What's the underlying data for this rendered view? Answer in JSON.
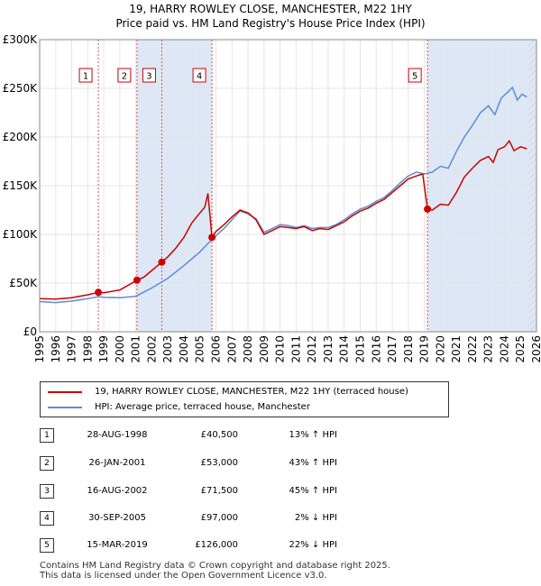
{
  "chart_data": {
    "type": "line",
    "title": "19, HARRY ROWLEY CLOSE, MANCHESTER, M22 1HY",
    "subtitle": "Price paid vs. HM Land Registry's House Price Index (HPI)",
    "ylim": [
      0,
      300000
    ],
    "y_ticks": [
      0,
      50000,
      100000,
      150000,
      200000,
      250000,
      300000
    ],
    "y_tick_labels": [
      "£0",
      "£50K",
      "£100K",
      "£150K",
      "£200K",
      "£250K",
      "£300K"
    ],
    "x_range": [
      1995,
      2026
    ],
    "x_ticks": [
      1995,
      1996,
      1997,
      1998,
      1999,
      2000,
      2001,
      2002,
      2003,
      2004,
      2005,
      2006,
      2007,
      2008,
      2009,
      2010,
      2011,
      2012,
      2013,
      2014,
      2015,
      2016,
      2017,
      2018,
      2019,
      2020,
      2021,
      2022,
      2023,
      2024,
      2025,
      2026
    ],
    "grid": true,
    "series": [
      {
        "name": "19, HARRY ROWLEY CLOSE, MANCHESTER, M22 1HY (terraced house)",
        "color": "#cc0000",
        "points": [
          [
            1995.0,
            34000
          ],
          [
            1996.0,
            33500
          ],
          [
            1997.0,
            35000
          ],
          [
            1998.0,
            38000
          ],
          [
            1998.66,
            40500
          ],
          [
            1999.0,
            40000
          ],
          [
            2000.0,
            43000
          ],
          [
            2001.07,
            53000
          ],
          [
            2001.5,
            56000
          ],
          [
            2002.0,
            63000
          ],
          [
            2002.62,
            71500
          ],
          [
            2003.0,
            77000
          ],
          [
            2003.5,
            86000
          ],
          [
            2004.0,
            97000
          ],
          [
            2004.5,
            112000
          ],
          [
            2005.0,
            122000
          ],
          [
            2005.3,
            128000
          ],
          [
            2005.5,
            142000
          ],
          [
            2005.75,
            97000
          ],
          [
            2006.0,
            103000
          ],
          [
            2006.5,
            110000
          ],
          [
            2007.0,
            118000
          ],
          [
            2007.5,
            125000
          ],
          [
            2008.0,
            122000
          ],
          [
            2008.5,
            115000
          ],
          [
            2009.0,
            100000
          ],
          [
            2009.5,
            104000
          ],
          [
            2010.0,
            108000
          ],
          [
            2010.5,
            107000
          ],
          [
            2011.0,
            106000
          ],
          [
            2011.5,
            108000
          ],
          [
            2012.0,
            104000
          ],
          [
            2012.5,
            106000
          ],
          [
            2013.0,
            105000
          ],
          [
            2013.5,
            109000
          ],
          [
            2014.0,
            113000
          ],
          [
            2014.5,
            119000
          ],
          [
            2015.0,
            124000
          ],
          [
            2015.5,
            127000
          ],
          [
            2016.0,
            132000
          ],
          [
            2016.5,
            136000
          ],
          [
            2017.0,
            143000
          ],
          [
            2017.5,
            150000
          ],
          [
            2018.0,
            157000
          ],
          [
            2018.5,
            160000
          ],
          [
            2018.9,
            162000
          ],
          [
            2019.2,
            126000
          ],
          [
            2019.5,
            125000
          ],
          [
            2020.0,
            131000
          ],
          [
            2020.5,
            130000
          ],
          [
            2021.0,
            143000
          ],
          [
            2021.5,
            159000
          ],
          [
            2022.0,
            168000
          ],
          [
            2022.5,
            176000
          ],
          [
            2023.0,
            180000
          ],
          [
            2023.3,
            174000
          ],
          [
            2023.6,
            187000
          ],
          [
            2024.0,
            190000
          ],
          [
            2024.3,
            196000
          ],
          [
            2024.6,
            186000
          ],
          [
            2025.0,
            190000
          ],
          [
            2025.4,
            188000
          ]
        ]
      },
      {
        "name": "HPI: Average price, terraced house, Manchester",
        "color": "#5b8fd0",
        "points": [
          [
            1995.0,
            31000
          ],
          [
            1996.0,
            30000
          ],
          [
            1997.0,
            31500
          ],
          [
            1998.0,
            34000
          ],
          [
            1998.66,
            36000
          ],
          [
            1999.0,
            35500
          ],
          [
            2000.0,
            35000
          ],
          [
            2001.0,
            36500
          ],
          [
            2002.0,
            45000
          ],
          [
            2003.0,
            55000
          ],
          [
            2004.0,
            68000
          ],
          [
            2005.0,
            82000
          ],
          [
            2005.75,
            95000
          ],
          [
            2006.5,
            106000
          ],
          [
            2007.0,
            115000
          ],
          [
            2007.5,
            124000
          ],
          [
            2008.0,
            121000
          ],
          [
            2008.5,
            116000
          ],
          [
            2009.0,
            102000
          ],
          [
            2009.5,
            106000
          ],
          [
            2010.0,
            110000
          ],
          [
            2010.5,
            109000
          ],
          [
            2011.0,
            107000
          ],
          [
            2011.5,
            109000
          ],
          [
            2012.0,
            106000
          ],
          [
            2012.5,
            107000
          ],
          [
            2013.0,
            107000
          ],
          [
            2013.5,
            110000
          ],
          [
            2014.0,
            115000
          ],
          [
            2014.5,
            121000
          ],
          [
            2015.0,
            126000
          ],
          [
            2015.5,
            129000
          ],
          [
            2016.0,
            134000
          ],
          [
            2016.5,
            138000
          ],
          [
            2017.0,
            145000
          ],
          [
            2017.5,
            153000
          ],
          [
            2018.0,
            160000
          ],
          [
            2018.5,
            164000
          ],
          [
            2019.0,
            162000
          ],
          [
            2019.5,
            164000
          ],
          [
            2020.0,
            170000
          ],
          [
            2020.5,
            168000
          ],
          [
            2021.0,
            185000
          ],
          [
            2021.5,
            200000
          ],
          [
            2022.0,
            212000
          ],
          [
            2022.5,
            225000
          ],
          [
            2023.0,
            232000
          ],
          [
            2023.4,
            223000
          ],
          [
            2023.8,
            240000
          ],
          [
            2024.2,
            246000
          ],
          [
            2024.5,
            251000
          ],
          [
            2024.8,
            238000
          ],
          [
            2025.1,
            244000
          ],
          [
            2025.4,
            241000
          ]
        ]
      }
    ],
    "sales": [
      {
        "id": "1",
        "date": "28-AUG-1998",
        "x": 1998.66,
        "price_value": 40500,
        "price": "£40,500",
        "hpi": "13% ↑ HPI"
      },
      {
        "id": "2",
        "date": "26-JAN-2001",
        "x": 2001.07,
        "price_value": 53000,
        "price": "£53,000",
        "hpi": "43% ↑ HPI"
      },
      {
        "id": "3",
        "date": "16-AUG-2002",
        "x": 2002.62,
        "price_value": 71500,
        "price": "£71,500",
        "hpi": "45% ↑ HPI"
      },
      {
        "id": "4",
        "date": "30-SEP-2005",
        "x": 2005.75,
        "price_value": 97000,
        "price": "£97,000",
        "hpi": "2% ↓ HPI"
      },
      {
        "id": "5",
        "date": "15-MAR-2019",
        "x": 2019.2,
        "price_value": 126000,
        "price": "£126,000",
        "hpi": "22% ↓ HPI"
      }
    ],
    "shaded_ranges": [
      [
        2001.07,
        2002.62
      ],
      [
        2002.62,
        2005.75
      ],
      [
        2019.2,
        2026
      ]
    ]
  },
  "legend": {
    "property_label": "19, HARRY ROWLEY CLOSE, MANCHESTER, M22 1HY (terraced house)",
    "hpi_label": "HPI: Average price, terraced house, Manchester",
    "property_color": "#cc0000",
    "hpi_color": "#5b8fd0"
  },
  "footer": {
    "line1": "Contains HM Land Registry data © Crown copyright and database right 2025.",
    "line2": "This data is licensed under the Open Government Licence v3.0."
  }
}
